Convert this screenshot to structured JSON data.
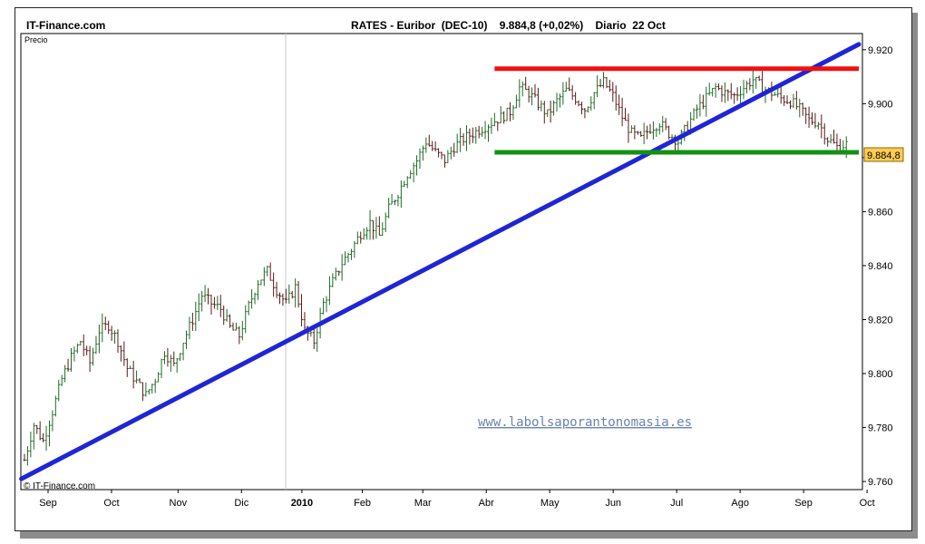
{
  "header": {
    "site": "IT-Finance.com",
    "title": "RATES - Euribor  (DEC-10)    9.884,8 (+0,02%)    Diario  22 Oct"
  },
  "chart_data": {
    "type": "ohlc",
    "ylabel": "Precio",
    "ylim": [
      9.757,
      9.926
    ],
    "y_ticks": [
      "9.920",
      "9.900",
      "9.880",
      "9.860",
      "9.840",
      "9.820",
      "9.800",
      "9.780",
      "9.760"
    ],
    "y_tick_values": [
      9.92,
      9.9,
      9.88,
      9.86,
      9.84,
      9.82,
      9.8,
      9.78,
      9.76
    ],
    "x_ticks": [
      "Sep",
      "Oct",
      "Nov",
      "Dic",
      "2010",
      "Feb",
      "Mar",
      "Abr",
      "May",
      "Jun",
      "Jul",
      "Ago",
      "Sep",
      "Oct"
    ],
    "last_price_label": "9.884,8",
    "last_price": 9.8848,
    "copyright": "© IT-Finance.com",
    "watermark": "www.labolsaporantonomasia.es",
    "path_points": [
      [
        0,
        9.768
      ],
      [
        3,
        9.781
      ],
      [
        6,
        9.775
      ],
      [
        9,
        9.786
      ],
      [
        12,
        9.798
      ],
      [
        15,
        9.806
      ],
      [
        18,
        9.812
      ],
      [
        21,
        9.804
      ],
      [
        24,
        9.816
      ],
      [
        27,
        9.818
      ],
      [
        30,
        9.812
      ],
      [
        33,
        9.802
      ],
      [
        36,
        9.797
      ],
      [
        39,
        9.792
      ],
      [
        42,
        9.798
      ],
      [
        45,
        9.808
      ],
      [
        48,
        9.803
      ],
      [
        51,
        9.812
      ],
      [
        54,
        9.82
      ],
      [
        57,
        9.829
      ],
      [
        60,
        9.826
      ],
      [
        63,
        9.824
      ],
      [
        66,
        9.817
      ],
      [
        69,
        9.814
      ],
      [
        72,
        9.825
      ],
      [
        75,
        9.834
      ],
      [
        78,
        9.838
      ],
      [
        81,
        9.831
      ],
      [
        84,
        9.826
      ],
      [
        87,
        9.832
      ],
      [
        90,
        9.816
      ],
      [
        93,
        9.812
      ],
      [
        96,
        9.826
      ],
      [
        99,
        9.834
      ],
      [
        102,
        9.841
      ],
      [
        105,
        9.846
      ],
      [
        108,
        9.852
      ],
      [
        111,
        9.856
      ],
      [
        114,
        9.851
      ],
      [
        117,
        9.861
      ],
      [
        120,
        9.867
      ],
      [
        123,
        9.874
      ],
      [
        126,
        9.879
      ],
      [
        129,
        9.886
      ],
      [
        132,
        9.882
      ],
      [
        135,
        9.879
      ],
      [
        138,
        9.884
      ],
      [
        141,
        9.887
      ],
      [
        144,
        9.889
      ],
      [
        147,
        9.891
      ],
      [
        150,
        9.893
      ],
      [
        153,
        9.895
      ],
      [
        156,
        9.897
      ],
      [
        159,
        9.906
      ],
      [
        162,
        9.904
      ],
      [
        165,
        9.9
      ],
      [
        168,
        9.896
      ],
      [
        171,
        9.901
      ],
      [
        174,
        9.905
      ],
      [
        177,
        9.902
      ],
      [
        180,
        9.898
      ],
      [
        183,
        9.904
      ],
      [
        186,
        9.908
      ],
      [
        189,
        9.903
      ],
      [
        192,
        9.895
      ],
      [
        195,
        9.889
      ],
      [
        198,
        9.887
      ],
      [
        201,
        9.891
      ],
      [
        204,
        9.893
      ],
      [
        207,
        9.889
      ],
      [
        210,
        9.886
      ],
      [
        213,
        9.892
      ],
      [
        216,
        9.898
      ],
      [
        219,
        9.902
      ],
      [
        222,
        9.906
      ],
      [
        225,
        9.904
      ],
      [
        228,
        9.903
      ],
      [
        231,
        9.906
      ],
      [
        234,
        9.909
      ],
      [
        237,
        9.906
      ],
      [
        240,
        9.904
      ],
      [
        243,
        9.902
      ],
      [
        246,
        9.901
      ],
      [
        249,
        9.898
      ],
      [
        252,
        9.894
      ],
      [
        255,
        9.893
      ],
      [
        258,
        9.887
      ],
      [
        261,
        9.884
      ],
      [
        264,
        9.885
      ]
    ],
    "support_level": 9.882,
    "resistance_level": 9.913,
    "trendline": {
      "from": [
        -1,
        9.761
      ],
      "to": [
        268,
        9.922
      ]
    },
    "colors": {
      "up": "#1f6b28",
      "down": "#5a1a1a",
      "trendline": "#1f25d6",
      "support": "#119311",
      "resistance": "#ee1111",
      "last_price_box": "#ffcc55"
    }
  }
}
